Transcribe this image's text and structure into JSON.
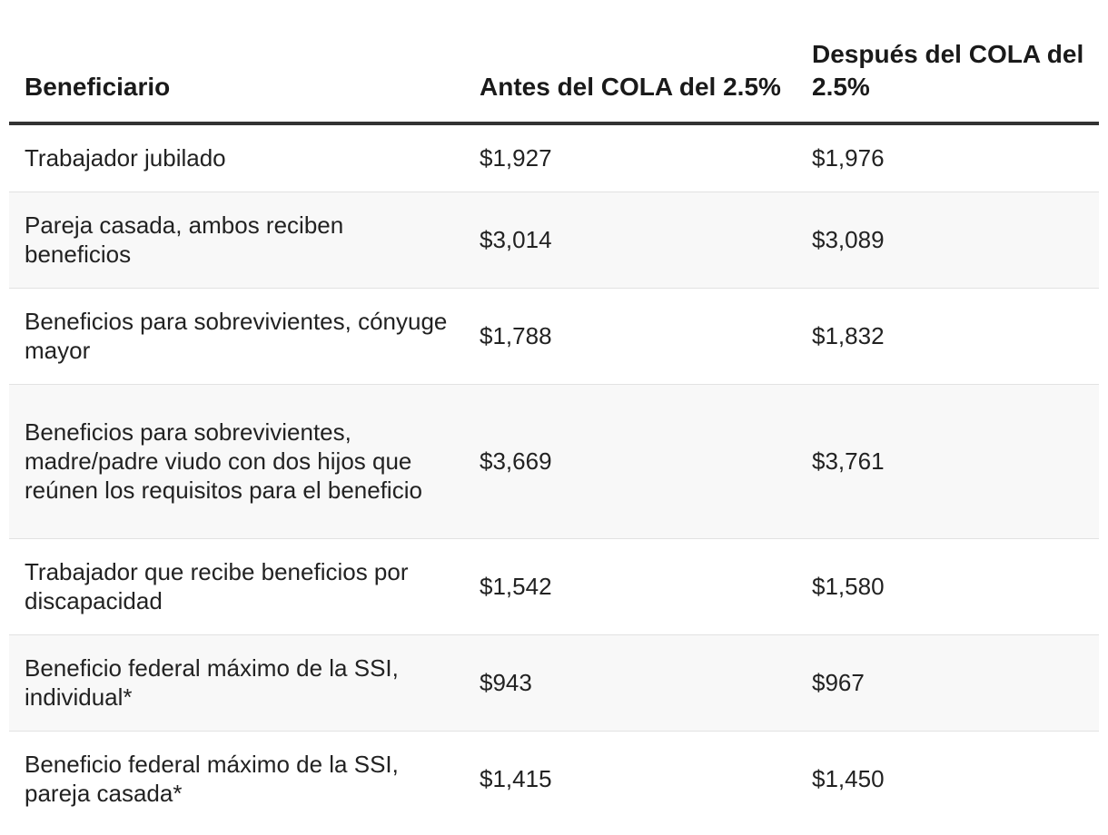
{
  "table": {
    "headers": {
      "beneficiary": "Beneficiario",
      "before": "Antes del COLA del 2.5%",
      "after": "Después del COLA del 2.5%"
    },
    "rows": [
      {
        "beneficiary": "Trabajador jubilado",
        "before": "$1,927",
        "after": "$1,976"
      },
      {
        "beneficiary": "Pareja casada, ambos reciben beneficios",
        "before": "$3,014",
        "after": "$3,089"
      },
      {
        "beneficiary": "Beneficios para sobrevivientes, cónyuge mayor",
        "before": "$1,788",
        "after": "$1,832"
      },
      {
        "beneficiary": "Beneficios para sobrevivientes, madre/padre viudo con dos hijos que reúnen los requisitos para el beneficio",
        "before": "$3,669",
        "after": "$3,761"
      },
      {
        "beneficiary": "Trabajador que recibe beneficios por discapacidad",
        "before": "$1,542",
        "after": "$1,580"
      },
      {
        "beneficiary": "Beneficio federal máximo de la SSI, individual*",
        "before": "$943",
        "after": "$967"
      },
      {
        "beneficiary": "Beneficio federal máximo de la SSI, pareja casada*",
        "before": "$1,415",
        "after": "$1,450"
      }
    ]
  },
  "colors": {
    "header_rule": "#333333",
    "row_alt_background": "#f8f8f8",
    "row_divider": "#e2e2e2"
  }
}
